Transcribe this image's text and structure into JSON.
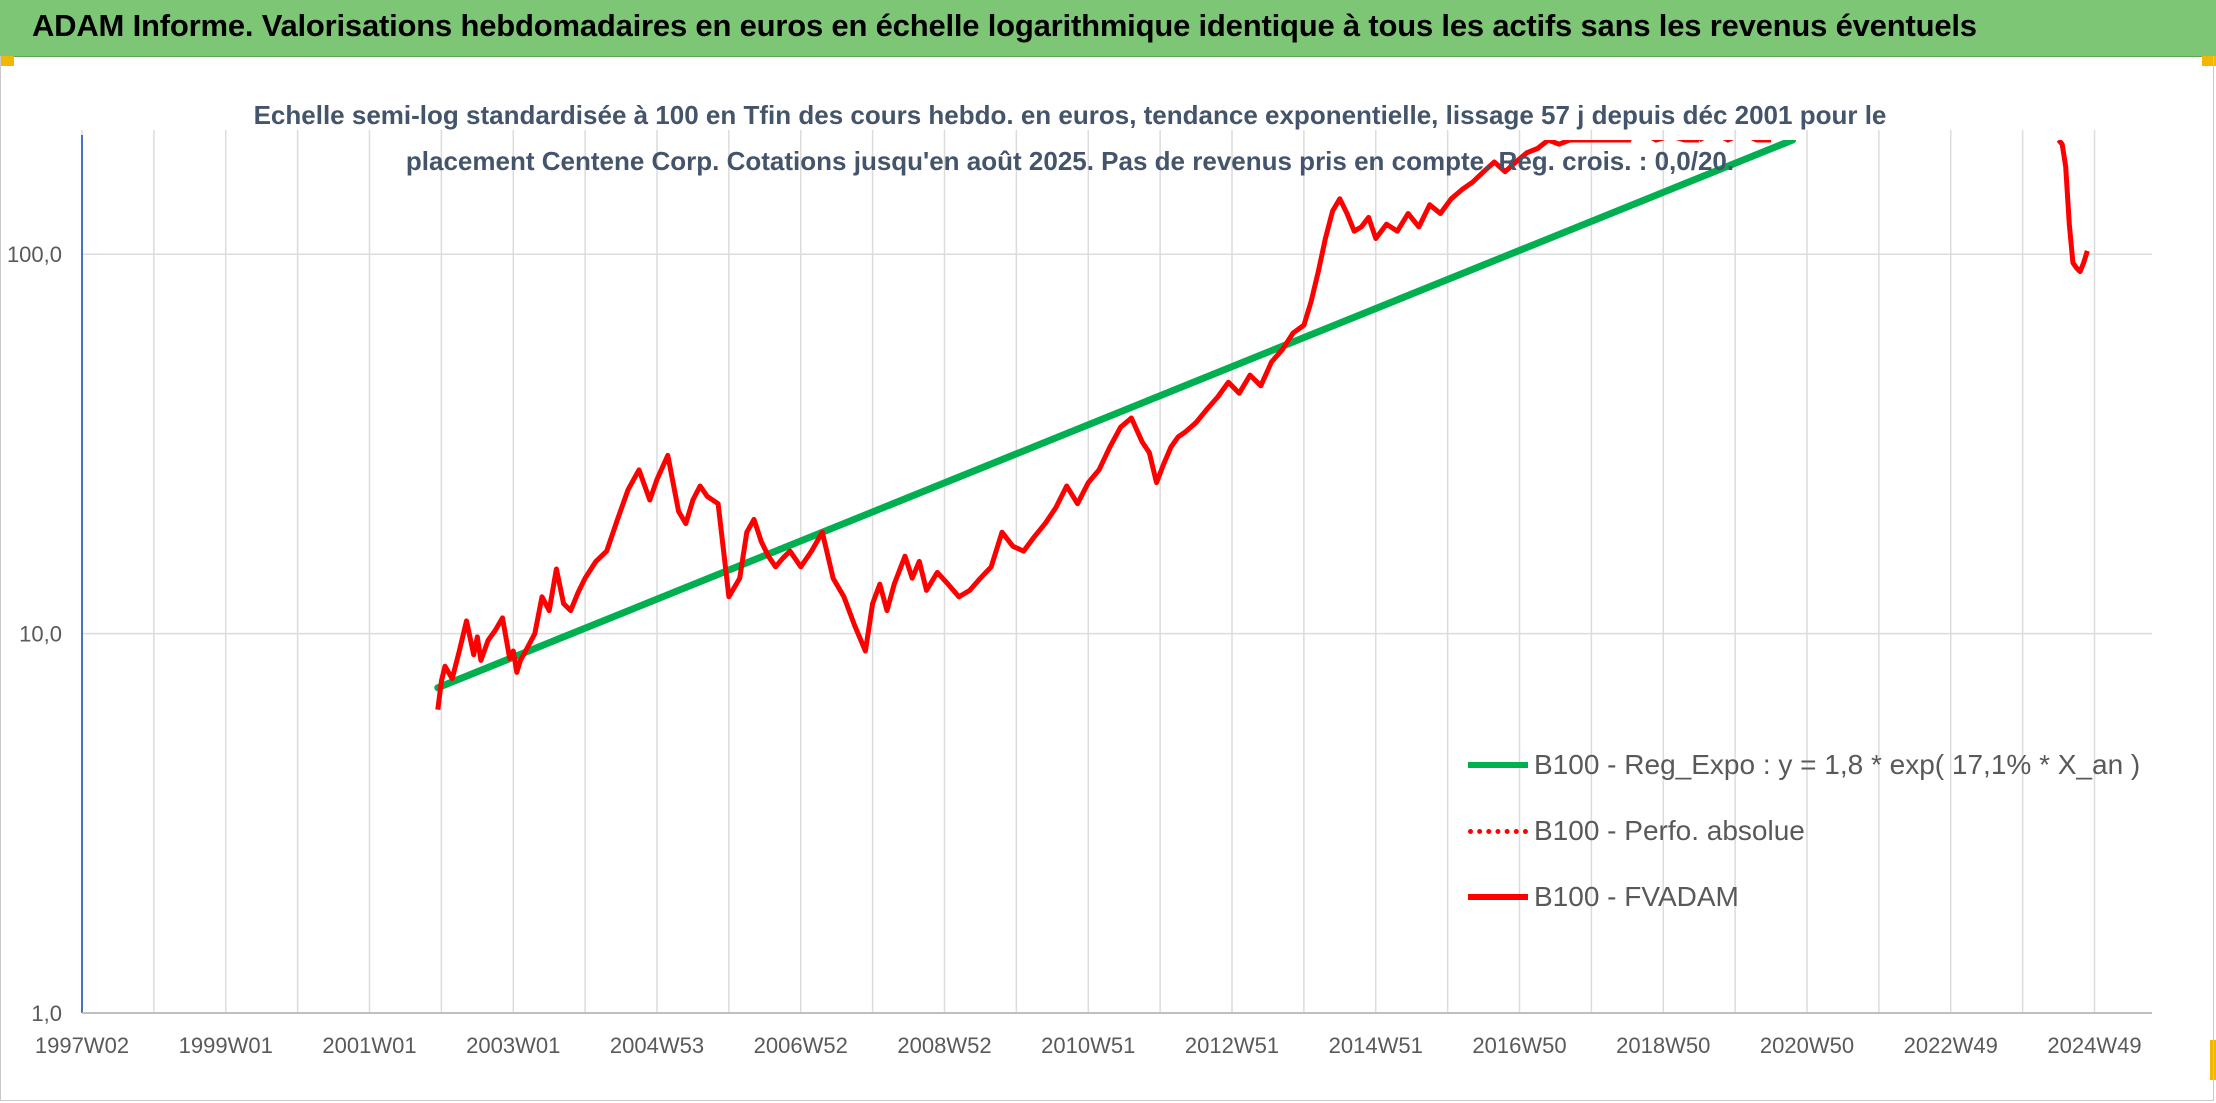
{
  "banner": {
    "title": "ADAM Informe. Valorisations hebdomadaires en euros en échelle logarithmique identique à tous les actifs sans les revenus éventuels"
  },
  "chart_data": {
    "type": "line",
    "title": "Echelle semi-log standardisée à 100 en Tfin des cours hebdo. en euros, tendance exponentielle, lissage 57 j depuis déc 2001 pour le placement Centene Corp. Cotations jusqu'en août 2025. Pas de revenus pris en compte. Reg. crois. : 0,0/20.",
    "xlabel": "",
    "ylabel": "",
    "y_scale": "log",
    "ylim": [
      1,
      200
    ],
    "xlim": [
      1997.0,
      2025.8
    ],
    "grid": true,
    "legend_position": "right",
    "y_ticks": [
      {
        "value": 1,
        "label": "1,0"
      },
      {
        "value": 10,
        "label": "10,0"
      },
      {
        "value": 100,
        "label": "100,0"
      }
    ],
    "x_ticks": [
      {
        "value": 1997.0,
        "label": "1997W02"
      },
      {
        "value": 1999.0,
        "label": "1999W01"
      },
      {
        "value": 2001.0,
        "label": "2001W01"
      },
      {
        "value": 2003.0,
        "label": "2003W01"
      },
      {
        "value": 2005.0,
        "label": "2004W53"
      },
      {
        "value": 2007.0,
        "label": "2006W52"
      },
      {
        "value": 2009.0,
        "label": "2008W52"
      },
      {
        "value": 2011.0,
        "label": "2010W51"
      },
      {
        "value": 2013.0,
        "label": "2012W51"
      },
      {
        "value": 2015.0,
        "label": "2014W51"
      },
      {
        "value": 2017.0,
        "label": "2016W50"
      },
      {
        "value": 2019.0,
        "label": "2018W50"
      },
      {
        "value": 2021.0,
        "label": "2020W50"
      },
      {
        "value": 2023.0,
        "label": "2022W49"
      },
      {
        "value": 2025.0,
        "label": "2024W49"
      }
    ],
    "x_minor_ticks": [
      1998.0,
      2000.0,
      2002.0,
      2004.0,
      2006.0,
      2008.0,
      2010.0,
      2012.0,
      2014.0,
      2016.0,
      2018.0,
      2020.0,
      2022.0,
      2024.0
    ],
    "series": [
      {
        "name": "B100 - Reg_Expo : y = 1,8 * exp( 17,1% *  X_an )",
        "color": "#00b050",
        "style": "solid",
        "x": [
          2001.95,
          2020.8
        ],
        "y": [
          7.2,
          200
        ]
      },
      {
        "name": "B100 - Perfo. absolue",
        "color": "#ff0000",
        "style": "dotted",
        "x": [],
        "y": []
      },
      {
        "name": "B100 - FVADAM",
        "color": "#ff0000",
        "style": "solid",
        "segments": [
          {
            "x": [
              2001.95,
              2002.0,
              2002.05,
              2002.15,
              2002.25,
              2002.35,
              2002.45,
              2002.5,
              2002.55,
              2002.65,
              2002.75,
              2002.85,
              2002.95,
              2003.0,
              2003.05,
              2003.1,
              2003.2,
              2003.3,
              2003.4,
              2003.5,
              2003.6,
              2003.7,
              2003.8,
              2003.9,
              2004.0,
              2004.15,
              2004.3,
              2004.45,
              2004.6,
              2004.75,
              2004.9,
              2005.0,
              2005.15,
              2005.3,
              2005.4,
              2005.5,
              2005.6,
              2005.7,
              2005.85,
              2006.0,
              2006.15,
              2006.25,
              2006.35,
              2006.45,
              2006.55,
              2006.65,
              2006.75,
              2006.85,
              2007.0,
              2007.15,
              2007.3,
              2007.45,
              2007.6,
              2007.75,
              2007.9,
              2008.0,
              2008.1,
              2008.2,
              2008.3,
              2008.45,
              2008.55,
              2008.65,
              2008.75,
              2008.9,
              2009.05,
              2009.2,
              2009.35,
              2009.5,
              2009.65,
              2009.8,
              2009.95,
              2010.1,
              2010.25,
              2010.4,
              2010.55,
              2010.7,
              2010.85,
              2011.0,
              2011.15,
              2011.3,
              2011.45,
              2011.6,
              2011.75,
              2011.85,
              2011.95,
              2012.05,
              2012.15,
              2012.25,
              2012.35,
              2012.5,
              2012.65,
              2012.8,
              2012.95,
              2013.1,
              2013.25,
              2013.4,
              2013.55,
              2013.7,
              2013.85,
              2014.0,
              2014.1,
              2014.2,
              2014.3,
              2014.4,
              2014.5,
              2014.6,
              2014.7,
              2014.8,
              2014.9,
              2015.0,
              2015.15,
              2015.3,
              2015.45,
              2015.6,
              2015.75,
              2015.9,
              2016.05,
              2016.2,
              2016.35,
              2016.5,
              2016.65,
              2016.8,
              2016.95,
              2017.1,
              2017.25,
              2017.4,
              2017.55,
              2017.7,
              2017.85,
              2018.0,
              2018.15,
              2018.3,
              2018.45,
              2018.55
            ],
            "y": [
              6.3,
              7.5,
              8.2,
              7.6,
              9.0,
              10.8,
              8.8,
              9.8,
              8.5,
              9.6,
              10.2,
              11.0,
              8.6,
              9.0,
              7.9,
              8.5,
              9.2,
              10.0,
              12.5,
              11.5,
              14.8,
              12.0,
              11.5,
              12.8,
              14.0,
              15.5,
              16.5,
              20.0,
              24.0,
              27.0,
              22.5,
              25.5,
              29.5,
              21.0,
              19.5,
              22.5,
              24.5,
              23.0,
              22.0,
              12.5,
              14.0,
              18.5,
              20.0,
              17.5,
              16.0,
              15.0,
              15.8,
              16.5,
              15.0,
              16.5,
              18.5,
              14.0,
              12.5,
              10.5,
              9.0,
              12.0,
              13.5,
              11.5,
              13.5,
              16.0,
              14.0,
              15.5,
              13.0,
              14.5,
              13.5,
              12.5,
              13.0,
              14.0,
              15.0,
              18.5,
              17.0,
              16.5,
              18.0,
              19.5,
              21.5,
              24.5,
              22.0,
              25.0,
              27.0,
              31.0,
              35.0,
              37.0,
              32.0,
              30.0,
              25.0,
              28.0,
              31.0,
              33.0,
              34.0,
              36.0,
              39.0,
              42.0,
              46.0,
              43.0,
              48.0,
              45.0,
              52.0,
              56.0,
              62.0,
              65.0,
              75.0,
              90.0,
              110.0,
              130.0,
              140.0,
              128.0,
              115.0,
              118.0,
              125.0,
              110.0,
              120.0,
              115.0,
              128.0,
              118.0,
              135.0,
              128.0,
              140.0,
              148.0,
              155.0,
              165.0,
              175.0,
              165.0,
              175.0,
              185.0,
              190.0,
              200.0,
              195.0,
              200.0,
              200.0,
              200.0,
              200.0,
              200.0,
              200.0,
              200.0
            ]
          },
          {
            "x": [
              2024.5,
              2024.55,
              2024.6,
              2024.65,
              2024.7,
              2024.75,
              2024.8,
              2024.85,
              2024.9
            ],
            "y": [
              200.0,
              195.0,
              170.0,
              120.0,
              95.0,
              92.0,
              90.0,
              95.0,
              102.0
            ]
          }
        ],
        "peaks": [
          {
            "x": [
              2018.1,
              2018.3,
              2018.5,
              2018.7,
              2018.9,
              2019.1,
              2019.3,
              2019.5
            ],
            "y": [
              200,
              205,
              200,
              210,
              200,
              205,
              200,
              200
            ]
          },
          {
            "x": [
              2019.5,
              2019.7,
              2019.9,
              2020.1,
              2020.3,
              2020.5
            ],
            "y": [
              200,
              210,
              200,
              208,
              200,
              200
            ]
          }
        ]
      }
    ]
  }
}
